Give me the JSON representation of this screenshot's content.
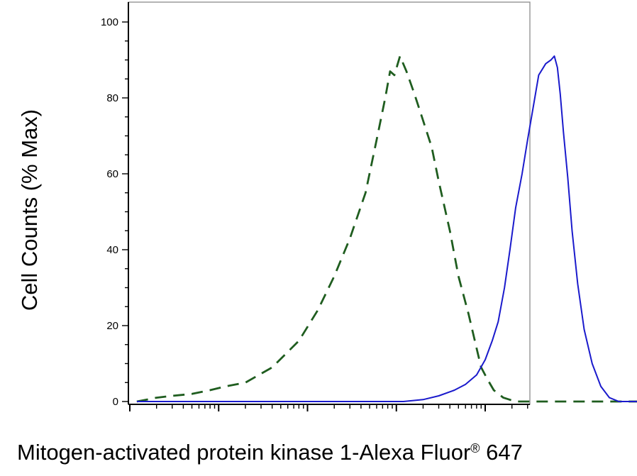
{
  "chart_data": {
    "type": "line",
    "title": "",
    "xlabel": "Mitogen-activated protein kinase 1-Alexa Fluor",
    "xlabel_mark": "®",
    "xlabel_suffix": " 647",
    "ylabel": "Cell Counts (% Max)",
    "x_scale": "log",
    "xlim": [
      1,
      1000000
    ],
    "ylim": [
      0,
      105
    ],
    "y_ticks": [
      0,
      20,
      40,
      60,
      80,
      100
    ],
    "y_tick_labels": [
      "0",
      "20",
      "40",
      "60",
      "80",
      "100"
    ],
    "grid": false,
    "legend": "none",
    "series": [
      {
        "style": "dashed",
        "color": "#1f5d1f",
        "x": [
          1.2,
          2,
          3,
          5,
          8,
          12,
          20,
          40,
          80,
          130,
          200,
          300,
          450,
          600,
          750,
          850,
          950,
          1100,
          1300,
          1600,
          2000,
          2500,
          3000,
          4000,
          5000,
          6500,
          8000,
          9000,
          10500,
          12500,
          16000,
          22000,
          35000,
          60000,
          120000,
          300000,
          600000
        ],
        "y": [
          0,
          1,
          1.5,
          2,
          3,
          4,
          5,
          9,
          16,
          24,
          33,
          43,
          55,
          69,
          80,
          87,
          86,
          91,
          87,
          81,
          74,
          67,
          58,
          45,
          33,
          23,
          14,
          9,
          6,
          3,
          1,
          0,
          0,
          0,
          0,
          0,
          0
        ]
      },
      {
        "style": "solid",
        "color": "#1a1acc",
        "x": [
          1.2,
          100,
          300,
          700,
          1200,
          2000,
          3000,
          4500,
          6000,
          8000,
          10000,
          12000,
          14000,
          16500,
          19000,
          22000,
          26000,
          30000,
          35000,
          40000,
          48000,
          55000,
          60000,
          65000,
          70000,
          76000,
          85000,
          95000,
          110000,
          130000,
          160000,
          200000,
          250000,
          320000,
          450000,
          800000
        ],
        "y": [
          0,
          0,
          0,
          0,
          0,
          0.5,
          1.5,
          3,
          4.5,
          7,
          11,
          16,
          21,
          30,
          40,
          51,
          60,
          69,
          78,
          86,
          89,
          90,
          91,
          88,
          81,
          71,
          59,
          45,
          31,
          19,
          10,
          4,
          1,
          0,
          0,
          0
        ]
      }
    ]
  }
}
